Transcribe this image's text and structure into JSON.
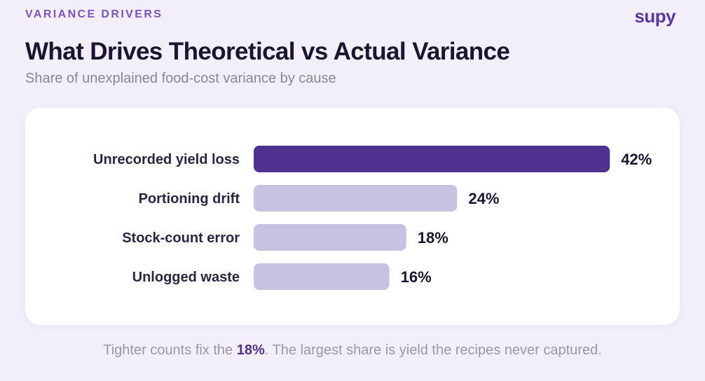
{
  "header": {
    "eyebrow": "VARIANCE DRIVERS",
    "logo": "supy",
    "title": "What Drives Theoretical vs Actual Variance",
    "subtitle": "Share of unexplained food-cost variance by cause"
  },
  "colors": {
    "background": "#f2effa",
    "highlight_bar": "#4f3190",
    "muted_bar": "#c9c1e1",
    "brand": "#5b34a8"
  },
  "chart_data": {
    "type": "bar",
    "orientation": "horizontal",
    "categories": [
      "Unrecorded yield loss",
      "Portioning drift",
      "Stock-count error",
      "Unlogged waste"
    ],
    "values": [
      42,
      24,
      18,
      16
    ],
    "value_labels": [
      "42%",
      "24%",
      "18%",
      "16%"
    ],
    "highlighted_index": 0,
    "unit": "%",
    "grid": false,
    "legend": "none"
  },
  "footnote": {
    "before": "Tighter counts fix the ",
    "highlight": "18%",
    "after": ". The largest share is yield the recipes never captured."
  }
}
